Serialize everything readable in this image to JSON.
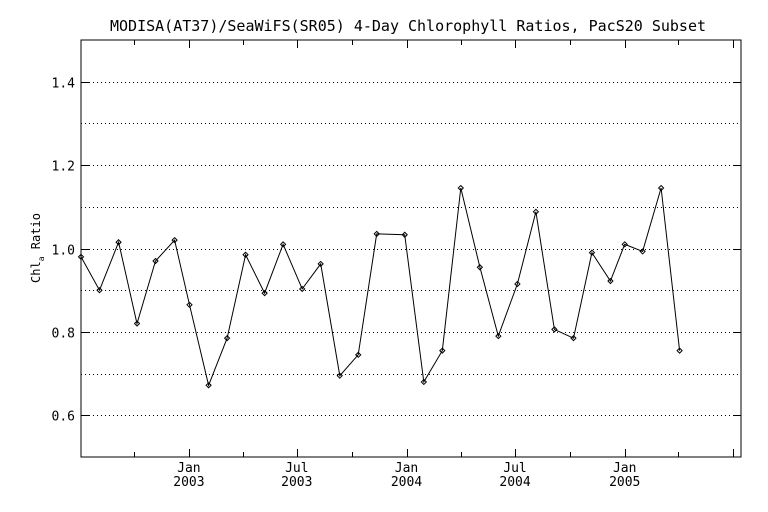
{
  "chart_data": {
    "type": "line",
    "title": "MODISA(AT37)/SeaWiFS(SR05) 4-Day Chlorophyll Ratios, PacS20 Subset",
    "ylabel_main": "Chl",
    "ylabel_sub": "a",
    "ylabel_rest": " Ratio",
    "xlabel": "",
    "ylim": [
      0.5,
      1.5
    ],
    "y_ticks": [
      "0.6",
      "0.8",
      "1.0",
      "1.2",
      "1.4"
    ],
    "x_range": [
      "2002-07-04",
      "2005-07-15"
    ],
    "x_ticks": [
      {
        "month": "Jan",
        "year": "2003",
        "date": "2003-01-01"
      },
      {
        "month": "Jul",
        "year": "2003",
        "date": "2003-07-01"
      },
      {
        "month": "Jan",
        "year": "2004",
        "date": "2004-01-01"
      },
      {
        "month": "Jul",
        "year": "2004",
        "date": "2004-07-01"
      },
      {
        "month": "Jan",
        "year": "2005",
        "date": "2005-01-01"
      }
    ],
    "grid": "horizontal dotted",
    "line_color": "#000000",
    "series": [
      {
        "points": [
          {
            "x": "2002-07-04",
            "y": 0.98
          },
          {
            "x": "2002-08-04",
            "y": 0.9
          },
          {
            "x": "2002-09-05",
            "y": 1.015
          },
          {
            "x": "2002-10-06",
            "y": 0.82
          },
          {
            "x": "2002-11-06",
            "y": 0.97
          },
          {
            "x": "2002-12-08",
            "y": 1.02
          },
          {
            "x": "2003-01-02",
            "y": 0.865
          },
          {
            "x": "2003-02-03",
            "y": 0.672
          },
          {
            "x": "2003-03-06",
            "y": 0.785
          },
          {
            "x": "2003-04-06",
            "y": 0.985
          },
          {
            "x": "2003-05-08",
            "y": 0.893
          },
          {
            "x": "2003-06-08",
            "y": 1.01
          },
          {
            "x": "2003-07-10",
            "y": 0.903
          },
          {
            "x": "2003-08-10",
            "y": 0.963
          },
          {
            "x": "2003-09-11",
            "y": 0.695
          },
          {
            "x": "2003-10-12",
            "y": 0.745
          },
          {
            "x": "2003-11-12",
            "y": 1.035
          },
          {
            "x": "2003-12-29",
            "y": 1.033
          },
          {
            "x": "2004-01-30",
            "y": 0.68
          },
          {
            "x": "2004-03-01",
            "y": 0.755
          },
          {
            "x": "2004-04-01",
            "y": 1.145
          },
          {
            "x": "2004-05-03",
            "y": 0.955
          },
          {
            "x": "2004-06-03",
            "y": 0.79
          },
          {
            "x": "2004-07-05",
            "y": 0.915
          },
          {
            "x": "2004-08-05",
            "y": 1.088
          },
          {
            "x": "2004-09-05",
            "y": 0.806
          },
          {
            "x": "2004-10-07",
            "y": 0.785
          },
          {
            "x": "2004-11-07",
            "y": 0.99
          },
          {
            "x": "2004-12-08",
            "y": 0.922
          },
          {
            "x": "2005-01-01",
            "y": 1.01
          },
          {
            "x": "2005-01-31",
            "y": 0.993
          },
          {
            "x": "2005-03-03",
            "y": 1.145
          },
          {
            "x": "2005-04-03",
            "y": 0.755
          }
        ]
      }
    ]
  }
}
